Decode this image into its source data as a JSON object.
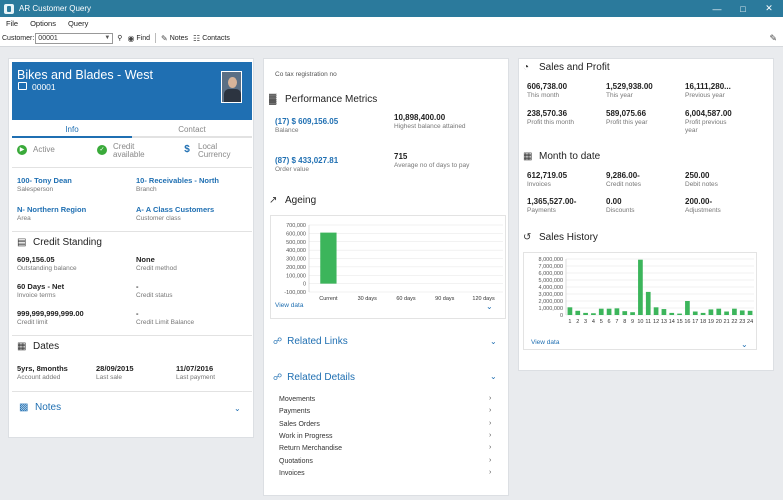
{
  "window": {
    "title": "AR Customer Query"
  },
  "menu": [
    "File",
    "Options",
    "Query"
  ],
  "toolbar": {
    "customer_label": "Customer:",
    "customer_value": "00001",
    "find": "Find",
    "notes": "Notes",
    "contacts": "Contacts"
  },
  "customer": {
    "name": "Bikes and Blades - West",
    "code": "00001",
    "tabs": [
      "Info",
      "Contact"
    ],
    "status": [
      {
        "label": "Active",
        "color": "#3aaa3a"
      },
      {
        "label": "Credit available",
        "color": "#3aaa3a"
      },
      {
        "label": "Local Currency",
        "color": "#1f6fb2"
      }
    ],
    "fields": {
      "salesperson": {
        "value": "100- Tony Dean",
        "label": "Salesperson"
      },
      "branch": {
        "value": "10- Receivables - North",
        "label": "Branch"
      },
      "area": {
        "value": "N- Northern Region",
        "label": "Area"
      },
      "customer_class": {
        "value": "A- A Class Customers",
        "label": "Customer class"
      }
    }
  },
  "credit": {
    "title": "Credit Standing",
    "items": [
      {
        "value": "609,156.05",
        "label": "Outstanding balance"
      },
      {
        "value": "None",
        "label": "Credit method"
      },
      {
        "value": "60 Days - Net",
        "label": "Invoice terms"
      },
      {
        "value": "-",
        "label": "Credit status"
      },
      {
        "value": "999,999,999,999.00",
        "label": "Credit limit"
      },
      {
        "value": "-",
        "label": "Credit Limit Balance"
      }
    ]
  },
  "dates": {
    "title": "Dates",
    "items": [
      {
        "value": "5yrs, 8months",
        "label": "Account added"
      },
      {
        "value": "28/09/2015",
        "label": "Last sale"
      },
      {
        "value": "11/07/2016",
        "label": "Last payment"
      }
    ]
  },
  "notes": {
    "title": "Notes"
  },
  "middle": {
    "tax": "Co tax registration no",
    "performance": {
      "title": "Performance Metrics",
      "items": [
        {
          "value": "(17) $ 609,156.05",
          "label": "Balance",
          "link": true
        },
        {
          "value": "10,898,400.00",
          "label": "Highest balance attained",
          "link": false
        },
        {
          "value": "(87) $ 433,027.81",
          "label": "Order value",
          "link": true
        },
        {
          "value": "715",
          "label": "Average no of days to pay",
          "link": false
        }
      ]
    },
    "ageing": {
      "title": "Ageing",
      "view_data": "View data"
    },
    "related_links": {
      "title": "Related Links"
    },
    "related_details": {
      "title": "Related Details",
      "items": [
        "Movements",
        "Payments",
        "Sales Orders",
        "Work in Progress",
        "Return Merchandise",
        "Quotations",
        "Invoices"
      ]
    }
  },
  "right": {
    "sales_profit": {
      "title": "Sales and Profit",
      "items": [
        {
          "value": "606,738.00",
          "label": "This month"
        },
        {
          "value": "1,529,938.00",
          "label": "This year"
        },
        {
          "value": "16,111,280...",
          "label": "Previous year"
        },
        {
          "value": "238,570.36",
          "label": "Profit this month"
        },
        {
          "value": "589,075.66",
          "label": "Profit this year"
        },
        {
          "value": "6,004,587.00",
          "label": "Profit previous year"
        }
      ]
    },
    "month_to_date": {
      "title": "Month to date",
      "items": [
        {
          "value": "612,719.05",
          "label": "Invoices"
        },
        {
          "value": "9,286.00-",
          "label": "Credit notes"
        },
        {
          "value": "250.00",
          "label": "Debit notes"
        },
        {
          "value": "1,365,527.00-",
          "label": "Payments"
        },
        {
          "value": "0.00",
          "label": "Discounts"
        },
        {
          "value": "200.00-",
          "label": "Adjustments"
        }
      ]
    },
    "sales_history": {
      "title": "Sales History",
      "view_data": "View data"
    }
  },
  "colors": {
    "accent": "#1f6fb2",
    "bar": "#3cb55b",
    "titlebar": "#2b7a9c"
  },
  "chart_data": [
    {
      "type": "bar",
      "title": "Ageing",
      "categories": [
        "Current",
        "30 days",
        "60 days",
        "90 days",
        "120 days"
      ],
      "values": [
        609156,
        0,
        0,
        0,
        0
      ],
      "yticks": [
        "700,000",
        "600,000",
        "500,000",
        "400,000",
        "300,000",
        "200,000",
        "100,000",
        "0",
        "-100,000"
      ],
      "ylim": [
        -100000,
        700000
      ]
    },
    {
      "type": "bar",
      "title": "Sales History",
      "categories": [
        "1",
        "2",
        "3",
        "4",
        "5",
        "6",
        "7",
        "8",
        "9",
        "10",
        "11",
        "12",
        "13",
        "14",
        "15",
        "16",
        "17",
        "18",
        "19",
        "20",
        "21",
        "22",
        "23",
        "24"
      ],
      "values": [
        1100000,
        600000,
        300000,
        250000,
        900000,
        900000,
        950000,
        550000,
        400000,
        7900000,
        3300000,
        1100000,
        850000,
        300000,
        200000,
        2000000,
        500000,
        300000,
        800000,
        900000,
        500000,
        900000,
        650000,
        600000
      ],
      "yticks": [
        "8,000,000",
        "7,000,000",
        "6,000,000",
        "5,000,000",
        "4,000,000",
        "3,000,000",
        "2,000,000",
        "1,000,000",
        "0"
      ],
      "ylim": [
        0,
        8000000
      ]
    }
  ]
}
